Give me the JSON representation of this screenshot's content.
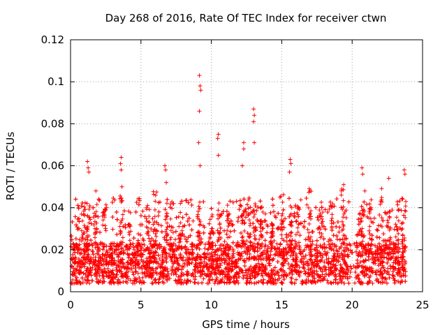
{
  "chart_data": {
    "type": "scatter",
    "title": "Day 268 of 2016, Rate Of TEC Index for receiver ctwn",
    "xlabel": "GPS time / hours",
    "ylabel": "ROTI / TECUs",
    "xlim": [
      0,
      25
    ],
    "ylim": [
      0,
      0.12
    ],
    "xticks": [
      "0",
      "5",
      "10",
      "15",
      "20",
      "25"
    ],
    "yticks": [
      "0",
      "0.02",
      "0.04",
      "0.06",
      "0.08",
      "0.1",
      "0.12"
    ],
    "grid": true,
    "marker": "+",
    "color": "#ff0000",
    "series": [
      {
        "name": "ROTI",
        "notable_points": [
          {
            "x": 9.15,
            "y": 0.103
          },
          {
            "x": 9.2,
            "y": 0.098
          },
          {
            "x": 9.25,
            "y": 0.096
          },
          {
            "x": 9.15,
            "y": 0.086
          },
          {
            "x": 9.1,
            "y": 0.071
          },
          {
            "x": 9.2,
            "y": 0.06
          },
          {
            "x": 13.0,
            "y": 0.087
          },
          {
            "x": 13.05,
            "y": 0.084
          },
          {
            "x": 13.0,
            "y": 0.081
          },
          {
            "x": 13.05,
            "y": 0.071
          },
          {
            "x": 10.5,
            "y": 0.075
          },
          {
            "x": 10.45,
            "y": 0.073
          },
          {
            "x": 10.5,
            "y": 0.065
          },
          {
            "x": 12.3,
            "y": 0.071
          },
          {
            "x": 12.3,
            "y": 0.068
          },
          {
            "x": 12.2,
            "y": 0.06
          },
          {
            "x": 3.6,
            "y": 0.064
          },
          {
            "x": 3.55,
            "y": 0.061
          },
          {
            "x": 3.6,
            "y": 0.058
          },
          {
            "x": 3.65,
            "y": 0.05
          },
          {
            "x": 1.2,
            "y": 0.062
          },
          {
            "x": 1.25,
            "y": 0.059
          },
          {
            "x": 1.3,
            "y": 0.057
          },
          {
            "x": 1.8,
            "y": 0.048
          },
          {
            "x": 6.7,
            "y": 0.06
          },
          {
            "x": 6.75,
            "y": 0.058
          },
          {
            "x": 6.8,
            "y": 0.052
          },
          {
            "x": 15.6,
            "y": 0.063
          },
          {
            "x": 15.65,
            "y": 0.061
          },
          {
            "x": 15.55,
            "y": 0.057
          },
          {
            "x": 20.7,
            "y": 0.059
          },
          {
            "x": 20.75,
            "y": 0.056
          },
          {
            "x": 20.9,
            "y": 0.048
          },
          {
            "x": 23.7,
            "y": 0.058
          },
          {
            "x": 23.75,
            "y": 0.056
          },
          {
            "x": 22.6,
            "y": 0.054
          },
          {
            "x": 19.4,
            "y": 0.051
          },
          {
            "x": 17.0,
            "y": 0.048
          },
          {
            "x": 7.8,
            "y": 0.042
          }
        ],
        "bulk_range": [
          0.004,
          0.045
        ],
        "bulk_typical": 0.015
      }
    ]
  }
}
